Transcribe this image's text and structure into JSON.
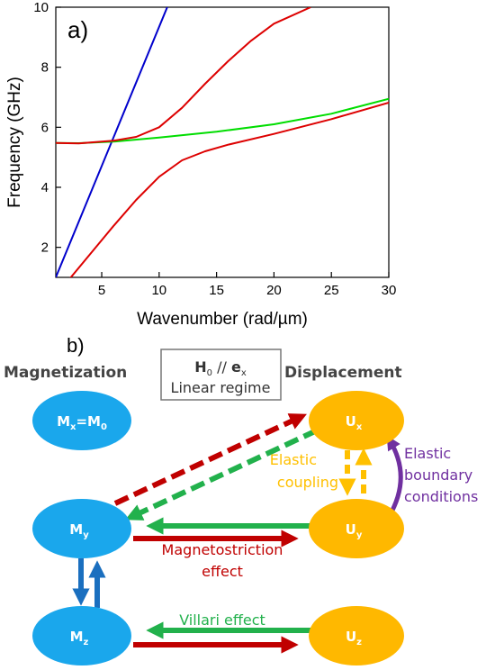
{
  "panel_a": {
    "label": "a)",
    "chart_data": {
      "type": "line",
      "xlabel": "Wavenumber (rad/µm)",
      "ylabel": "Frequency (GHz)",
      "xlim": [
        1,
        30
      ],
      "ylim": [
        1,
        10
      ],
      "x_ticks": [
        5,
        10,
        15,
        20,
        25,
        30
      ],
      "y_ticks": [
        2,
        4,
        6,
        8,
        10
      ],
      "series": [
        {
          "color": "#0000cc",
          "points": [
            [
              1,
              1.0
            ],
            [
              10.7,
              10.0
            ]
          ]
        },
        {
          "color": "#00dd00",
          "points": [
            [
              1,
              5.48
            ],
            [
              3,
              5.47
            ],
            [
              6,
              5.52
            ],
            [
              10,
              5.66
            ],
            [
              15,
              5.85
            ],
            [
              20,
              6.1
            ],
            [
              25,
              6.45
            ],
            [
              30,
              6.95
            ]
          ]
        },
        {
          "color": "#dd0000",
          "points": [
            [
              1,
              5.48
            ],
            [
              3,
              5.46
            ],
            [
              6,
              5.55
            ],
            [
              8,
              5.68
            ],
            [
              10,
              6.0
            ],
            [
              12,
              6.65
            ],
            [
              14,
              7.45
            ],
            [
              16,
              8.2
            ],
            [
              18,
              8.88
            ],
            [
              20,
              9.45
            ],
            [
              23.2,
              10.0
            ]
          ]
        },
        {
          "color": "#dd0000",
          "points": [
            [
              2.2,
              0.95
            ],
            [
              4,
              1.78
            ],
            [
              6,
              2.7
            ],
            [
              8,
              3.58
            ],
            [
              10,
              4.35
            ],
            [
              12,
              4.9
            ],
            [
              14,
              5.2
            ],
            [
              16,
              5.42
            ],
            [
              20,
              5.78
            ],
            [
              25,
              6.27
            ],
            [
              30,
              6.82
            ]
          ]
        }
      ]
    }
  },
  "panel_b": {
    "label": "b)",
    "header_left": "Magnetization",
    "header_right": "Displacement",
    "box_line1_main": "H",
    "box_line1_sub": "0",
    "box_line1_mid": " // ",
    "box_line1_e": "e",
    "box_line1_esub": "x",
    "box_line2": "Linear regime",
    "nodes": {
      "mx_main": "M",
      "mx_sub": "x",
      "mx_eq": "=M",
      "mx_eqsub": "0",
      "my_main": "M",
      "my_sub": "y",
      "mz_main": "M",
      "mz_sub": "z",
      "ux_main": "U",
      "ux_sub": "x",
      "uy_main": "U",
      "uy_sub": "y",
      "uz_main": "U",
      "uz_sub": "z"
    },
    "labels": {
      "elastic_coupling": [
        "Elastic",
        "coupling"
      ],
      "elastic_boundary": [
        "Elastic",
        "boundary",
        "conditions"
      ],
      "magnetostriction": [
        "Magnetostriction",
        "effect"
      ],
      "villari": "Villari effect"
    },
    "colors": {
      "magnetization": "#1aa7ec",
      "displacement": "#ffb800",
      "red": "#c00000",
      "green": "#22b14c",
      "blue": "#1a6fbf",
      "purple": "#7030a0",
      "orange": "#ffc000"
    }
  }
}
